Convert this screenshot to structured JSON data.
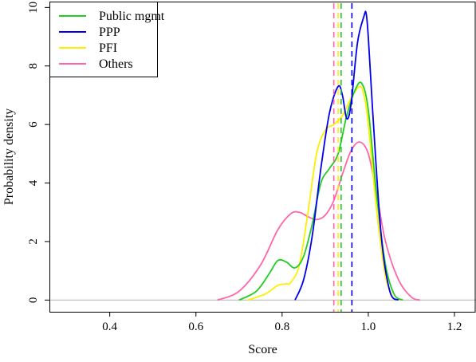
{
  "chart_data": {
    "type": "line",
    "title": "",
    "xlabel": "Score",
    "ylabel": "Probability density",
    "xlim": [
      0.26,
      1.25
    ],
    "ylim": [
      -0.4,
      10.2
    ],
    "x_ticks": [
      0.4,
      0.6,
      0.8,
      1.0,
      1.2
    ],
    "x_tick_labels": [
      "0.4",
      "0.6",
      "0.8",
      "1.0",
      "1.2"
    ],
    "y_ticks": [
      0,
      2,
      4,
      6,
      8,
      10
    ],
    "y_tick_labels": [
      "0",
      "2",
      "4",
      "6",
      "8",
      "10"
    ],
    "legend_position": "top-left",
    "baseline": {
      "y": 0,
      "color": "#bbbbbb"
    },
    "series": [
      {
        "name": "Public mgmt",
        "color": "#22cc22",
        "mean": 0.937,
        "x": [
          0.7,
          0.74,
          0.77,
          0.79,
          0.81,
          0.83,
          0.85,
          0.87,
          0.89,
          0.91,
          0.93,
          0.95,
          0.97,
          0.985,
          1.0,
          1.02,
          1.04,
          1.06,
          1.08
        ],
        "y": [
          0.0,
          0.3,
          0.9,
          1.35,
          1.3,
          1.1,
          1.5,
          2.6,
          4.0,
          4.5,
          5.0,
          6.3,
          7.2,
          7.4,
          6.5,
          3.5,
          1.2,
          0.2,
          0.0
        ]
      },
      {
        "name": "PPP",
        "color": "#0000ee",
        "mean": 0.962,
        "x": [
          0.83,
          0.85,
          0.87,
          0.89,
          0.91,
          0.93,
          0.94,
          0.95,
          0.96,
          0.975,
          0.99,
          0.995,
          1.0,
          1.01,
          1.03,
          1.05,
          1.07
        ],
        "y": [
          0.0,
          0.7,
          2.2,
          4.5,
          6.4,
          7.3,
          7.0,
          6.2,
          6.7,
          8.8,
          9.7,
          9.8,
          9.0,
          6.5,
          2.2,
          0.3,
          0.0
        ]
      },
      {
        "name": "PFI",
        "color": "#ffee00",
        "mean": 0.93,
        "x": [
          0.72,
          0.76,
          0.79,
          0.81,
          0.82,
          0.84,
          0.86,
          0.88,
          0.9,
          0.92,
          0.94,
          0.96,
          0.98,
          0.99,
          1.0,
          1.02,
          1.04,
          1.06
        ],
        "y": [
          0.0,
          0.2,
          0.5,
          0.55,
          0.6,
          1.2,
          3.0,
          5.0,
          5.8,
          6.0,
          6.3,
          6.9,
          7.3,
          7.0,
          6.0,
          3.0,
          0.8,
          0.0
        ]
      },
      {
        "name": "Others",
        "color": "#ff66aa",
        "mean": 0.92,
        "x": [
          0.65,
          0.7,
          0.75,
          0.79,
          0.82,
          0.84,
          0.86,
          0.88,
          0.9,
          0.92,
          0.94,
          0.96,
          0.98,
          1.0,
          1.02,
          1.04,
          1.07,
          1.1,
          1.12
        ],
        "y": [
          0.0,
          0.3,
          1.2,
          2.4,
          2.95,
          3.0,
          2.85,
          2.75,
          2.9,
          3.4,
          4.3,
          5.1,
          5.4,
          5.0,
          3.6,
          2.0,
          0.7,
          0.1,
          0.0
        ]
      }
    ]
  }
}
